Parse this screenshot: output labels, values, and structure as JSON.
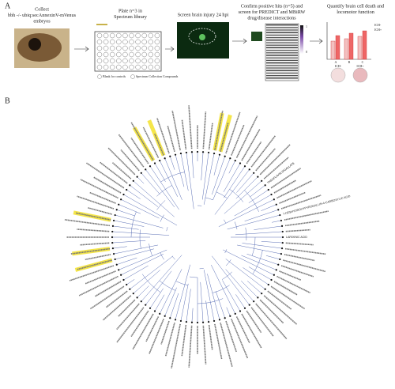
{
  "panel_a": {
    "label": "A",
    "steps": [
      [
        "Collect",
        "bbh -/- ubiq:secAnnexinV-mVenus",
        "embryos"
      ],
      [
        "Plate n=3 in",
        "Spectrum library"
      ],
      [
        "Screen brain injury 24 hpi"
      ],
      [
        "Confirm positive hits (n=5) and",
        "screen for PREDICT and MBiRW",
        "drug/disease interactions"
      ],
      [
        "Quantify brain cell death and",
        "locomotor function"
      ]
    ],
    "plate_legend": [
      "Blank for controls",
      "Spectrum Collection Compounds"
    ],
    "heatmap_ticks": [
      "1",
      "0"
    ],
    "bar_groups": [
      "A",
      "B",
      "C"
    ],
    "conditions": [
      "ICH-",
      "ICH+"
    ]
  },
  "panel_b": {
    "label": "B",
    "tip_labels": [
      "THEAFLAVIN DIGALLATE",
      "7-DESHYDROXYPYROGALLIN-4-CARBOXYLIC ACID",
      "LARIXINIC ACID"
    ]
  }
}
